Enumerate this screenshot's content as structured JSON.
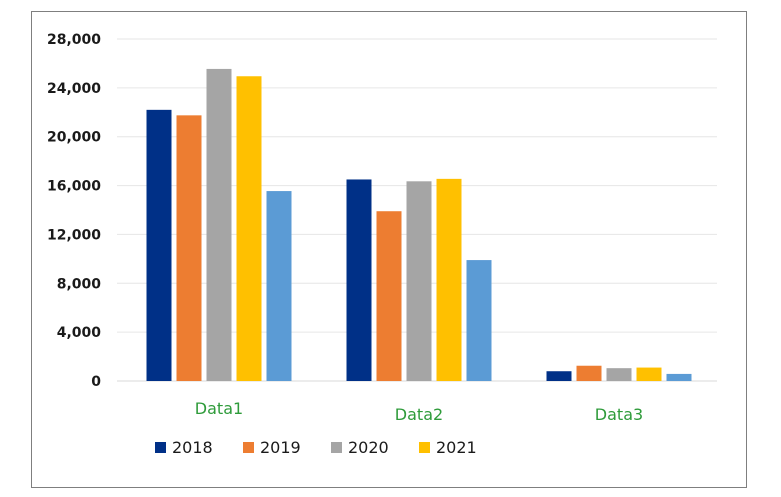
{
  "chart_data": {
    "type": "bar",
    "categories": [
      "Data1",
      "Data2",
      "Data3"
    ],
    "series": [
      {
        "name": "2018",
        "color": "#003087",
        "values": [
          22200,
          16500,
          800
        ]
      },
      {
        "name": "2019",
        "color": "#ed7d31",
        "values": [
          21750,
          13900,
          1250
        ]
      },
      {
        "name": "2020",
        "color": "#a5a5a5",
        "values": [
          25550,
          16350,
          1050
        ]
      },
      {
        "name": "2021",
        "color": "#ffc000",
        "values": [
          24950,
          16550,
          1100
        ]
      },
      {
        "values": [
          15550,
          9900,
          580
        ],
        "color": "#5b9bd5"
      }
    ],
    "ylim": [
      0,
      28000
    ],
    "yticks": [
      0,
      4000,
      8000,
      12000,
      16000,
      20000,
      24000,
      28000
    ],
    "ytick_labels": [
      "0",
      "4,000",
      "8,000",
      "12,000",
      "16,000",
      "20,000",
      "24,000",
      "28,000"
    ],
    "grid": true,
    "legend_position": "bottom",
    "xlabel": "",
    "ylabel": ""
  }
}
